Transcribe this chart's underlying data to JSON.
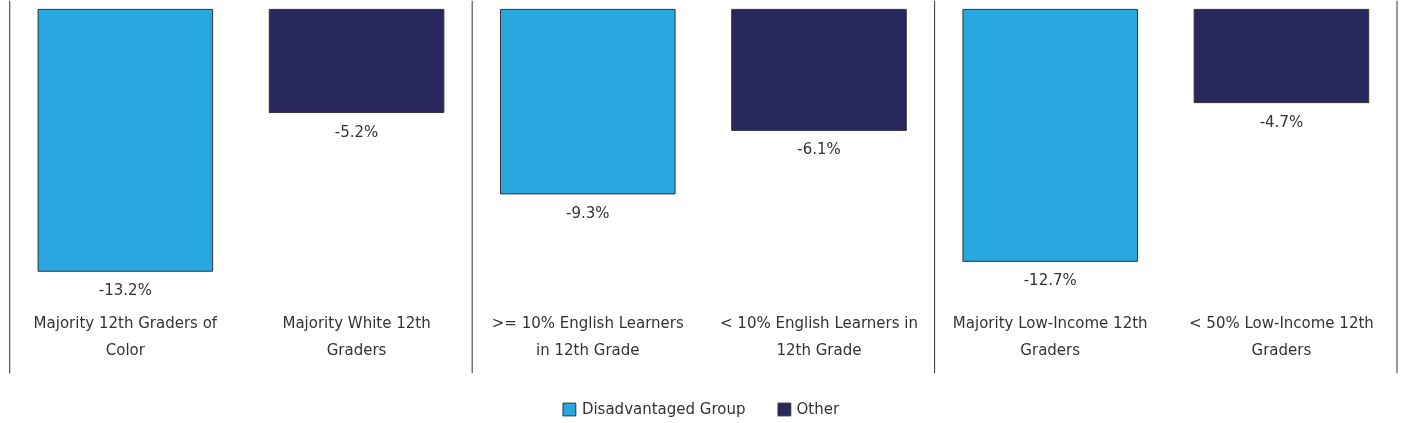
{
  "chart_data": {
    "type": "bar",
    "categories": [
      "Majority 12th Graders of Color",
      "Majority White 12th Graders",
      ">= 10% English Learners in 12th Grade",
      "< 10% English Learners in 12th Grade",
      "Majority Low-Income 12th Graders",
      "< 50% Low-Income 12th Graders"
    ],
    "series": [
      {
        "name": "Disadvantaged Group",
        "color": "#29a8e0",
        "values": [
          -13.2,
          null,
          -9.3,
          null,
          -12.7,
          null
        ],
        "value_labels": [
          "-13.2%",
          null,
          "-9.3%",
          null,
          "-12.7%",
          null
        ]
      },
      {
        "name": "Other",
        "color": "#28285e",
        "values": [
          null,
          -5.2,
          null,
          -6.1,
          null,
          -4.7
        ],
        "value_labels": [
          null,
          "-5.2%",
          null,
          "-6.1%",
          null,
          "-4.7%"
        ]
      }
    ],
    "legend": "bottom"
  }
}
